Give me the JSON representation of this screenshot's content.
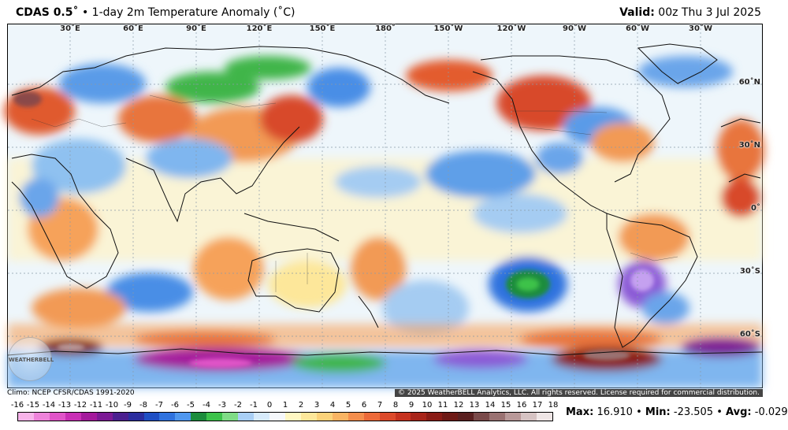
{
  "header": {
    "model": "CDAS 0.5˚",
    "separator": "•",
    "product": "1-day 2m Temperature Anomaly (˚C)",
    "valid_label": "Valid:",
    "valid_value": "00z Thu 3 Jul 2025"
  },
  "map": {
    "longitude_labels": [
      "30˚E",
      "60˚E",
      "90˚E",
      "120˚E",
      "150˚E",
      "180˚",
      "150˚W",
      "120˚W",
      "90˚W",
      "60˚W",
      "30˚W"
    ],
    "latitude_labels": [
      "60˚N",
      "30˚N",
      "0˚",
      "30˚S",
      "60˚S"
    ],
    "logo_text": "WEATHERBELL"
  },
  "footer": {
    "climo": "Climo: NCEP CFSR/CDAS 1991-2020",
    "copyright": "© 2025 WeatherBELL Analytics, LLC. All rights reserved. License required for commercial distribution."
  },
  "legend": {
    "ticks": [
      "-16",
      "-15",
      "-14",
      "-13",
      "-12",
      "-11",
      "-10",
      "-9",
      "-8",
      "-7",
      "-6",
      "-5",
      "-4",
      "-3",
      "-2",
      "-1",
      "0",
      "1",
      "2",
      "3",
      "4",
      "5",
      "6",
      "7",
      "8",
      "9",
      "10",
      "11",
      "12",
      "13",
      "14",
      "15",
      "16",
      "17",
      "18"
    ],
    "colors": [
      "#f7b3e9",
      "#ee83da",
      "#e054c8",
      "#c92eb5",
      "#a41a9c",
      "#7c1a95",
      "#4b1f8f",
      "#2b2d9e",
      "#1f4fc4",
      "#2f72de",
      "#4f97ee",
      "#1c8c3c",
      "#3cc24a",
      "#7fdc86",
      "#a9cff5",
      "#d7ebfb",
      "#f6f8fb",
      "#fff7c2",
      "#fde79a",
      "#fbd27a",
      "#f9b463",
      "#f48e4d",
      "#ec6a3a",
      "#dc4a2b",
      "#c6321f",
      "#a8251a",
      "#8a1c16",
      "#6e1a16",
      "#5a2020",
      "#7a4a4a",
      "#9a7272",
      "#b99999",
      "#d6c3c3",
      "#efe6e6"
    ]
  },
  "stats": {
    "max_label": "Max:",
    "max_value": "16.910",
    "min_label": "Min:",
    "min_value": "-23.505",
    "avg_label": "Avg:",
    "avg_value": "-0.029",
    "sep": "•"
  }
}
